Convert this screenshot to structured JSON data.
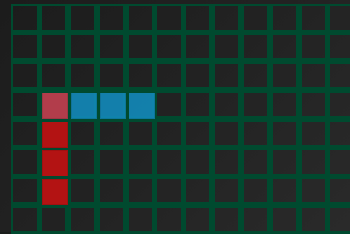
{
  "board": {
    "grid_color": "#004a2f",
    "background_color": "#222222",
    "columns": 12,
    "rows": 8
  },
  "pieces": [
    {
      "name": "red-piece",
      "color": "#b31313",
      "cells": [
        {
          "col": 1,
          "row": 3
        },
        {
          "col": 1,
          "row": 4
        },
        {
          "col": 1,
          "row": 5
        },
        {
          "col": 1,
          "row": 6
        }
      ]
    },
    {
      "name": "blue-piece",
      "color": "#1288b7",
      "cells": [
        {
          "col": 1,
          "row": 3
        },
        {
          "col": 2,
          "row": 3
        },
        {
          "col": 3,
          "row": 3
        },
        {
          "col": 4,
          "row": 3
        }
      ]
    }
  ]
}
